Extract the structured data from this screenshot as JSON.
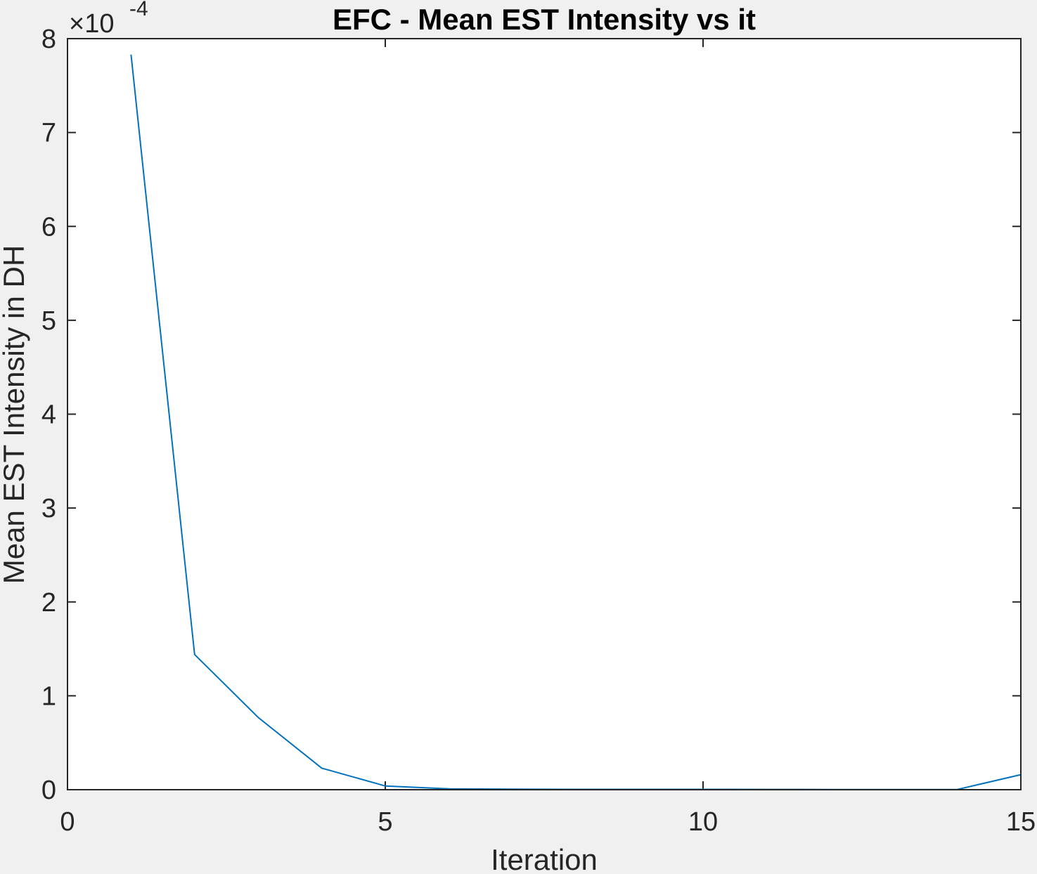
{
  "chart_data": {
    "type": "line",
    "title": "EFC - Mean EST Intensity vs it",
    "xlabel": "Iteration",
    "ylabel": "Mean EST Intensity in DH",
    "xlim": [
      0,
      15
    ],
    "ylim": [
      0,
      8
    ],
    "y_exponent_prefix": "×10",
    "y_exponent_power": "-4",
    "xticks": [
      0,
      5,
      10,
      15
    ],
    "yticks": [
      0,
      1,
      2,
      3,
      4,
      5,
      6,
      7,
      8
    ],
    "grid": false,
    "series": [
      {
        "name": "Mean EST Intensity",
        "color": "#0072BD",
        "x": [
          1,
          2,
          3,
          4,
          5,
          6,
          7,
          8,
          9,
          10,
          11,
          12,
          13,
          14,
          15
        ],
        "y": [
          7.83,
          1.44,
          0.77,
          0.23,
          0.04,
          0.01,
          0.005,
          0.004,
          0.004,
          0.004,
          0.003,
          0.002,
          0.002,
          0.002,
          0.16
        ]
      }
    ]
  },
  "colors": {
    "figure_bg": "#f0f0f0",
    "axes_bg": "#ffffff",
    "axis_color": "#262626",
    "line_color": "#0072BD"
  }
}
